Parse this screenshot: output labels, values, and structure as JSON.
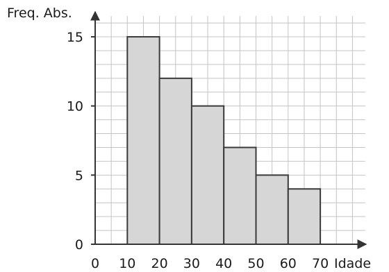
{
  "chart_data": {
    "type": "bar",
    "subtype": "histogram",
    "bins": [
      {
        "from": 10,
        "to": 20,
        "value": 15
      },
      {
        "from": 20,
        "to": 30,
        "value": 12
      },
      {
        "from": 30,
        "to": 40,
        "value": 10
      },
      {
        "from": 40,
        "to": 50,
        "value": 7
      },
      {
        "from": 50,
        "to": 60,
        "value": 5
      },
      {
        "from": 60,
        "to": 70,
        "value": 4
      }
    ],
    "xlabel": "Idade",
    "ylabel": "Freq. Abs.",
    "xlim": [
      0,
      85
    ],
    "ylim": [
      0,
      16.5
    ],
    "x_ticks": [
      0,
      10,
      20,
      30,
      40,
      50,
      60,
      70
    ],
    "x_tick_labels": [
      "0",
      "10",
      "20",
      "30",
      "40",
      "50",
      "60",
      "70"
    ],
    "y_ticks": [
      0,
      5,
      10,
      15
    ],
    "y_tick_labels": [
      "0",
      "5",
      "10",
      "15"
    ],
    "grid": true,
    "colors": {
      "bar_fill": "#d6d6d6",
      "bar_edge": "#3a3a3a",
      "grid": "#c4c4c4",
      "axis": "#333333"
    }
  }
}
